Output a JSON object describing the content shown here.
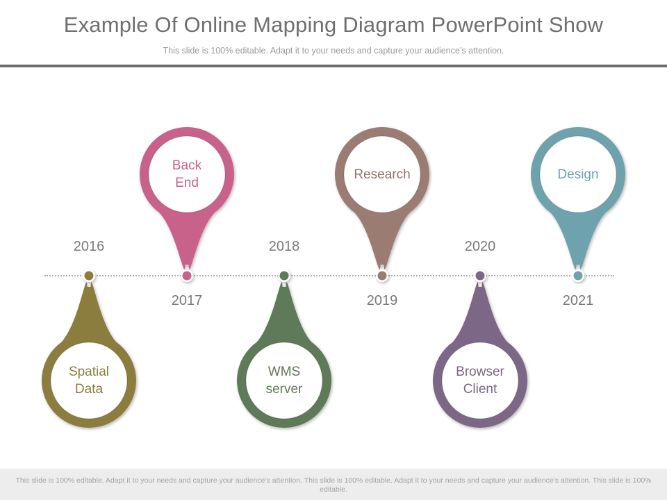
{
  "slide": {
    "title": "Example Of Online Mapping Diagram PowerPoint Show",
    "subtitle": "This slide is 100% editable. Adapt it to your needs and capture your audience’s attention.",
    "footer": "This slide is 100% editable. Adapt it to your needs and capture your audience’s attention. This slide is 100% editable. Adapt it to your needs and capture your audience’s attention. This slide is 100% editable."
  },
  "milestones": [
    {
      "year": "2016",
      "label_lines": [
        "Spatial",
        "Data"
      ],
      "color": "#8b7d3c",
      "label_color": "#8b7d3c",
      "direction": "down"
    },
    {
      "year": "2017",
      "label_lines": [
        "Back",
        "End"
      ],
      "color": "#c8628a",
      "label_color": "#c8628a",
      "direction": "up"
    },
    {
      "year": "2018",
      "label_lines": [
        "WMS",
        "server"
      ],
      "color": "#5f7a58",
      "label_color": "#5f7a58",
      "direction": "down"
    },
    {
      "year": "2019",
      "label_lines": [
        "Research"
      ],
      "color": "#9a7b72",
      "label_color": "#8e756c",
      "direction": "up"
    },
    {
      "year": "2020",
      "label_lines": [
        "Browser",
        "Client"
      ],
      "color": "#7c6786",
      "label_color": "#7c6786",
      "direction": "down"
    },
    {
      "year": "2021",
      "label_lines": [
        "Design"
      ],
      "color": "#6ea2ad",
      "label_color": "#6ea2ad",
      "direction": "up"
    }
  ]
}
